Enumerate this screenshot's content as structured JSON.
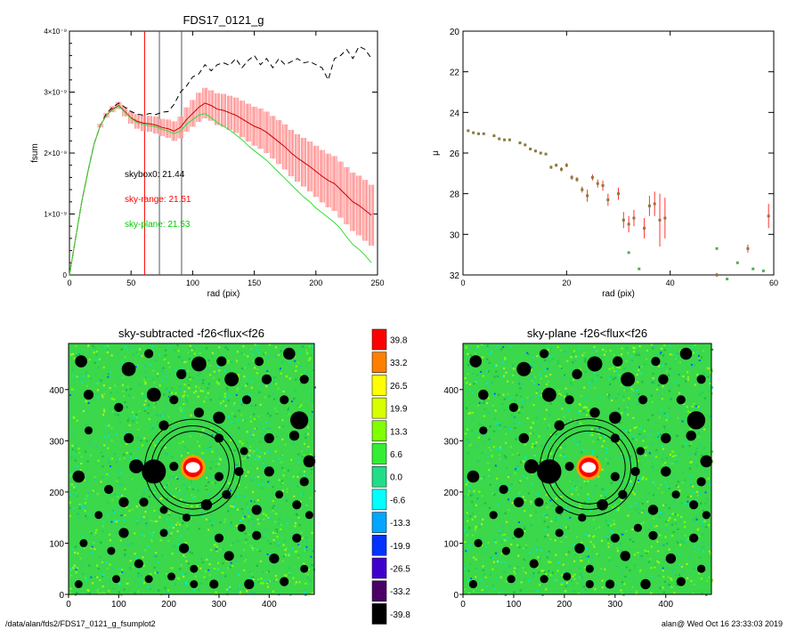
{
  "footer": {
    "path": "/data/alan/fds2/FDS17_0121_g_fsumplot2",
    "stamp": "alan@  Wed Oct 16 23:33:03 2019"
  },
  "chart_data": [
    {
      "type": "line",
      "title": "FDS17_0121_g",
      "xlabel": "rad (pix)",
      "ylabel": "fsum",
      "xlim": [
        0,
        250
      ],
      "ylim": [
        0,
        4e-09
      ],
      "xticks": [
        "0",
        "50",
        "100",
        "150",
        "200",
        "250"
      ],
      "yticks": [
        "0",
        "1×10⁻⁹",
        "2×10⁻⁹",
        "3×10⁻⁹",
        "4×10⁻⁹"
      ],
      "vlines": [
        {
          "x": 61,
          "color": "#ff0000"
        },
        {
          "x": 73,
          "color": "#555555"
        },
        {
          "x": 91,
          "color": "#555555"
        }
      ],
      "annotations": [
        {
          "text": "skybox0: 21.44",
          "color": "#000000"
        },
        {
          "text": "sky-range: 21.51",
          "color": "#ff0000"
        },
        {
          "text": "sky-plane: 21.53",
          "color": "#00cc00"
        }
      ],
      "series": [
        {
          "style": "dashed",
          "color": "#000000",
          "x": [
            0,
            5,
            10,
            15,
            20,
            25,
            30,
            35,
            40,
            45,
            50,
            55,
            60,
            65,
            70,
            75,
            80,
            85,
            90,
            95,
            100,
            105,
            110,
            115,
            120,
            125,
            130,
            135,
            140,
            145,
            150,
            155,
            160,
            165,
            170,
            175,
            180,
            185,
            190,
            195,
            200,
            205,
            210,
            215,
            220,
            225,
            230,
            235,
            240,
            245
          ],
          "y": [
            0,
            6e-10,
            1.2e-09,
            1.7e-09,
            2.15e-09,
            2.45e-09,
            2.65e-09,
            2.75e-09,
            2.82e-09,
            2.75e-09,
            2.68e-09,
            2.64e-09,
            2.62e-09,
            2.65e-09,
            2.63e-09,
            2.67e-09,
            2.68e-09,
            2.8e-09,
            3e-09,
            3.1e-09,
            3.25e-09,
            3.3e-09,
            3.45e-09,
            3.35e-09,
            3.45e-09,
            3.48e-09,
            3.44e-09,
            3.55e-09,
            3.4e-09,
            3.52e-09,
            3.6e-09,
            3.45e-09,
            3.55e-09,
            3.4e-09,
            3.55e-09,
            3.45e-09,
            3.5e-09,
            3.55e-09,
            3.48e-09,
            3.5e-09,
            3.45e-09,
            3.4e-09,
            3.2e-09,
            3.55e-09,
            3.6e-09,
            3.7e-09,
            3.55e-09,
            3.75e-09,
            3.7e-09,
            3.55e-09
          ]
        },
        {
          "style": "solid",
          "color": "#cc0000",
          "x": [
            0,
            5,
            10,
            15,
            20,
            25,
            30,
            35,
            40,
            45,
            50,
            55,
            60,
            65,
            70,
            75,
            80,
            85,
            90,
            95,
            100,
            105,
            110,
            115,
            120,
            125,
            130,
            135,
            140,
            145,
            150,
            155,
            160,
            165,
            170,
            175,
            180,
            185,
            190,
            195,
            200,
            205,
            210,
            215,
            220,
            225,
            230,
            235,
            240,
            245
          ],
          "y": [
            0,
            6e-10,
            1.2e-09,
            1.7e-09,
            2.15e-09,
            2.45e-09,
            2.62e-09,
            2.72e-09,
            2.78e-09,
            2.68e-09,
            2.58e-09,
            2.52e-09,
            2.49e-09,
            2.48e-09,
            2.46e-09,
            2.42e-09,
            2.4e-09,
            2.36e-09,
            2.42e-09,
            2.55e-09,
            2.65e-09,
            2.75e-09,
            2.82e-09,
            2.78e-09,
            2.72e-09,
            2.7e-09,
            2.66e-09,
            2.62e-09,
            2.56e-09,
            2.5e-09,
            2.44e-09,
            2.4e-09,
            2.34e-09,
            2.26e-09,
            2.18e-09,
            2.1e-09,
            2e-09,
            1.92e-09,
            1.85e-09,
            1.78e-09,
            1.7e-09,
            1.62e-09,
            1.55e-09,
            1.5e-09,
            1.4e-09,
            1.3e-09,
            1.2e-09,
            1.14e-09,
            1.06e-09,
            9.8e-10
          ],
          "err": [
            0,
            0,
            0,
            0,
            0,
            3e-11,
            4e-11,
            5e-11,
            6e-11,
            8e-11,
            1e-10,
            1.2e-10,
            1.3e-10,
            1.3e-10,
            1.4e-10,
            1.4e-10,
            1.5e-10,
            1.6e-10,
            1.8e-10,
            2e-10,
            2.2e-10,
            2.4e-10,
            2.5e-10,
            2.5e-10,
            2.6e-10,
            2.7e-10,
            2.8e-10,
            2.9e-10,
            3e-10,
            3.1e-10,
            3.2e-10,
            3.3e-10,
            3.4e-10,
            3.5e-10,
            3.6e-10,
            3.7e-10,
            3.8e-10,
            3.9e-10,
            4e-10,
            4.1e-10,
            4.2e-10,
            4.3e-10,
            4.4e-10,
            4.5e-10,
            4.6e-10,
            4.7e-10,
            4.8e-10,
            4.9e-10,
            5e-10,
            5e-10
          ]
        },
        {
          "style": "solid",
          "color": "#33dd33",
          "x": [
            0,
            5,
            10,
            15,
            20,
            25,
            30,
            35,
            40,
            45,
            50,
            55,
            60,
            65,
            70,
            75,
            80,
            85,
            90,
            95,
            100,
            105,
            110,
            115,
            120,
            125,
            130,
            135,
            140,
            145,
            150,
            155,
            160,
            165,
            170,
            175,
            180,
            185,
            190,
            195,
            200,
            205,
            210,
            215,
            220,
            225,
            230,
            235,
            240,
            245
          ],
          "y": [
            0,
            6e-10,
            1.2e-09,
            1.7e-09,
            2.15e-09,
            2.45e-09,
            2.62e-09,
            2.71e-09,
            2.77e-09,
            2.67e-09,
            2.57e-09,
            2.5e-09,
            2.47e-09,
            2.45e-09,
            2.43e-09,
            2.39e-09,
            2.36e-09,
            2.32e-09,
            2.36e-09,
            2.47e-09,
            2.55e-09,
            2.62e-09,
            2.65e-09,
            2.58e-09,
            2.5e-09,
            2.44e-09,
            2.38e-09,
            2.3e-09,
            2.22e-09,
            2.12e-09,
            2.04e-09,
            1.96e-09,
            1.88e-09,
            1.78e-09,
            1.68e-09,
            1.58e-09,
            1.48e-09,
            1.38e-09,
            1.28e-09,
            1.2e-09,
            1.1e-09,
            1.02e-09,
            9.4e-10,
            8.6e-10,
            7.6e-10,
            6.2e-10,
            5e-10,
            4.2e-10,
            3.2e-10,
            2e-10
          ]
        }
      ]
    },
    {
      "type": "scatter",
      "xlabel": "rad (pix)",
      "ylabel": "μ",
      "xlim": [
        0,
        60
      ],
      "ylim": [
        32,
        20
      ],
      "xticks": [
        "0",
        "20",
        "40",
        "60"
      ],
      "yticks": [
        "20",
        "22",
        "24",
        "26",
        "28",
        "30",
        "32"
      ],
      "points": [
        {
          "x": 1,
          "y": 24.9,
          "e": 0.05
        },
        {
          "x": 2,
          "y": 25.0,
          "e": 0.05
        },
        {
          "x": 3,
          "y": 25.05,
          "e": 0.05
        },
        {
          "x": 4,
          "y": 25.05,
          "e": 0.05
        },
        {
          "x": 6,
          "y": 25.15,
          "e": 0.05
        },
        {
          "x": 7,
          "y": 25.3,
          "e": 0.05
        },
        {
          "x": 8,
          "y": 25.35,
          "e": 0.05
        },
        {
          "x": 9,
          "y": 25.35,
          "e": 0.05
        },
        {
          "x": 11,
          "y": 25.5,
          "e": 0.06
        },
        {
          "x": 12,
          "y": 25.6,
          "e": 0.06
        },
        {
          "x": 13,
          "y": 25.8,
          "e": 0.06
        },
        {
          "x": 14,
          "y": 25.9,
          "e": 0.06
        },
        {
          "x": 15,
          "y": 26.0,
          "e": 0.06
        },
        {
          "x": 16,
          "y": 26.05,
          "e": 0.06
        },
        {
          "x": 17,
          "y": 26.7,
          "e": 0.08
        },
        {
          "x": 18,
          "y": 26.6,
          "e": 0.08
        },
        {
          "x": 19,
          "y": 26.8,
          "e": 0.1
        },
        {
          "x": 20,
          "y": 26.6,
          "e": 0.1
        },
        {
          "x": 21,
          "y": 27.2,
          "e": 0.12
        },
        {
          "x": 22,
          "y": 27.3,
          "e": 0.12
        },
        {
          "x": 23,
          "y": 27.8,
          "e": 0.15
        },
        {
          "x": 24,
          "y": 28.1,
          "e": 0.3
        },
        {
          "x": 25,
          "y": 27.2,
          "e": 0.15
        },
        {
          "x": 26,
          "y": 27.5,
          "e": 0.2
        },
        {
          "x": 27,
          "y": 27.6,
          "e": 0.25
        },
        {
          "x": 28,
          "y": 28.3,
          "e": 0.3
        },
        {
          "x": 30,
          "y": 28.0,
          "e": 0.3
        },
        {
          "x": 31,
          "y": 29.3,
          "e": 0.4
        },
        {
          "x": 32,
          "y": 29.5,
          "e": 0.4
        },
        {
          "x": 33,
          "y": 29.2,
          "e": 0.4
        },
        {
          "x": 35,
          "y": 29.7,
          "e": 0.5
        },
        {
          "x": 36,
          "y": 28.6,
          "e": 0.5
        },
        {
          "x": 37,
          "y": 28.5,
          "e": 0.6
        },
        {
          "x": 38,
          "y": 29.3,
          "e": 1.3
        },
        {
          "x": 39,
          "y": 29.2,
          "e": 1.0
        },
        {
          "x": 55,
          "y": 30.7,
          "e": 0.2
        },
        {
          "x": 59,
          "y": 29.1,
          "e": 0.6
        },
        {
          "x": 49,
          "y": 32.0,
          "e": 0.1
        }
      ],
      "green_points": [
        {
          "x": 34,
          "y": 31.7
        },
        {
          "x": 32,
          "y": 30.9
        },
        {
          "x": 49,
          "y": 30.7
        },
        {
          "x": 51,
          "y": 32.2
        },
        {
          "x": 53,
          "y": 31.4
        },
        {
          "x": 56,
          "y": 31.7
        },
        {
          "x": 58,
          "y": 31.8
        }
      ]
    },
    {
      "type": "heatmap",
      "title": "sky-subtracted -f26<flux<f26",
      "xlim": [
        0,
        490
      ],
      "ylim": [
        0,
        490
      ],
      "xticks": [
        "0",
        "100",
        "200",
        "300",
        "400"
      ],
      "yticks": [
        "0",
        "100",
        "200",
        "300",
        "400"
      ]
    },
    {
      "type": "heatmap",
      "title": "sky-plane -f26<flux<f26",
      "xlim": [
        0,
        490
      ],
      "ylim": [
        0,
        490
      ],
      "xticks": [
        "0",
        "100",
        "200",
        "300",
        "400"
      ],
      "yticks": [
        "0",
        "100",
        "200",
        "300",
        "400"
      ]
    },
    {
      "type": "colorbar",
      "labels": [
        "39.8",
        "33.2",
        "26.5",
        "19.9",
        "13.3",
        "6.6",
        "0.0",
        "-6.6",
        "-13.3",
        "-19.9",
        "-26.5",
        "-33.2",
        "-39.8"
      ],
      "colors": [
        "#ff0000",
        "#ff7f00",
        "#ffff00",
        "#d8ff00",
        "#7fff00",
        "#33ee33",
        "#22dd88",
        "#00ffff",
        "#00a6ff",
        "#0033ff",
        "#4000cc",
        "#4b0066",
        "#000000"
      ]
    }
  ]
}
